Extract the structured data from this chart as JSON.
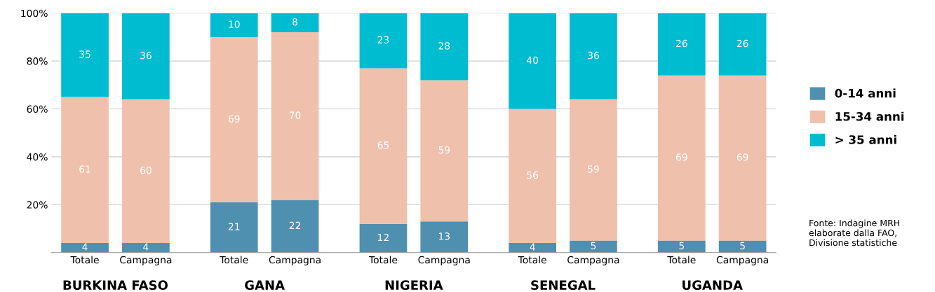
{
  "chart_data": {
    "type": "bar",
    "stacked": true,
    "data_labels": true,
    "grid": "y",
    "legend": "right",
    "categories": [
      "Totale",
      "Campagna",
      "Totale",
      "Campagna",
      "Totale",
      "Campagna",
      "Totale",
      "Campagna",
      "Totale",
      "Campagna"
    ],
    "ylim": [
      0,
      100
    ],
    "yticks": [
      {
        "value": 0,
        "label": null
      },
      {
        "value": 20,
        "label": "20%"
      },
      {
        "value": 40,
        "label": "40%"
      },
      {
        "value": 60,
        "label": "60%"
      },
      {
        "value": 80,
        "label": "80%"
      },
      {
        "value": 100,
        "label": "100%"
      }
    ],
    "series": [
      {
        "name": "0-14 anni",
        "color": "#4f8fb0",
        "values": [
          4,
          4,
          21,
          22,
          12,
          13,
          4,
          5,
          5,
          5
        ]
      },
      {
        "name": "15-34 anni",
        "color": "#efc0ab",
        "values": [
          61,
          60,
          69,
          70,
          65,
          59,
          56,
          59,
          69,
          69
        ]
      },
      {
        "name": "> 35 anni",
        "color": "#00bcd0",
        "values": [
          35,
          36,
          10,
          8,
          23,
          28,
          40,
          36,
          26,
          26
        ]
      }
    ],
    "annotations": [
      "BURKINA FASO",
      "GANA",
      "NIGERIA",
      "SENEGAL",
      "UGANDA",
      "Fonte: Indagine MRH elaborate dalla FAO, Divisione statistiche"
    ]
  }
}
